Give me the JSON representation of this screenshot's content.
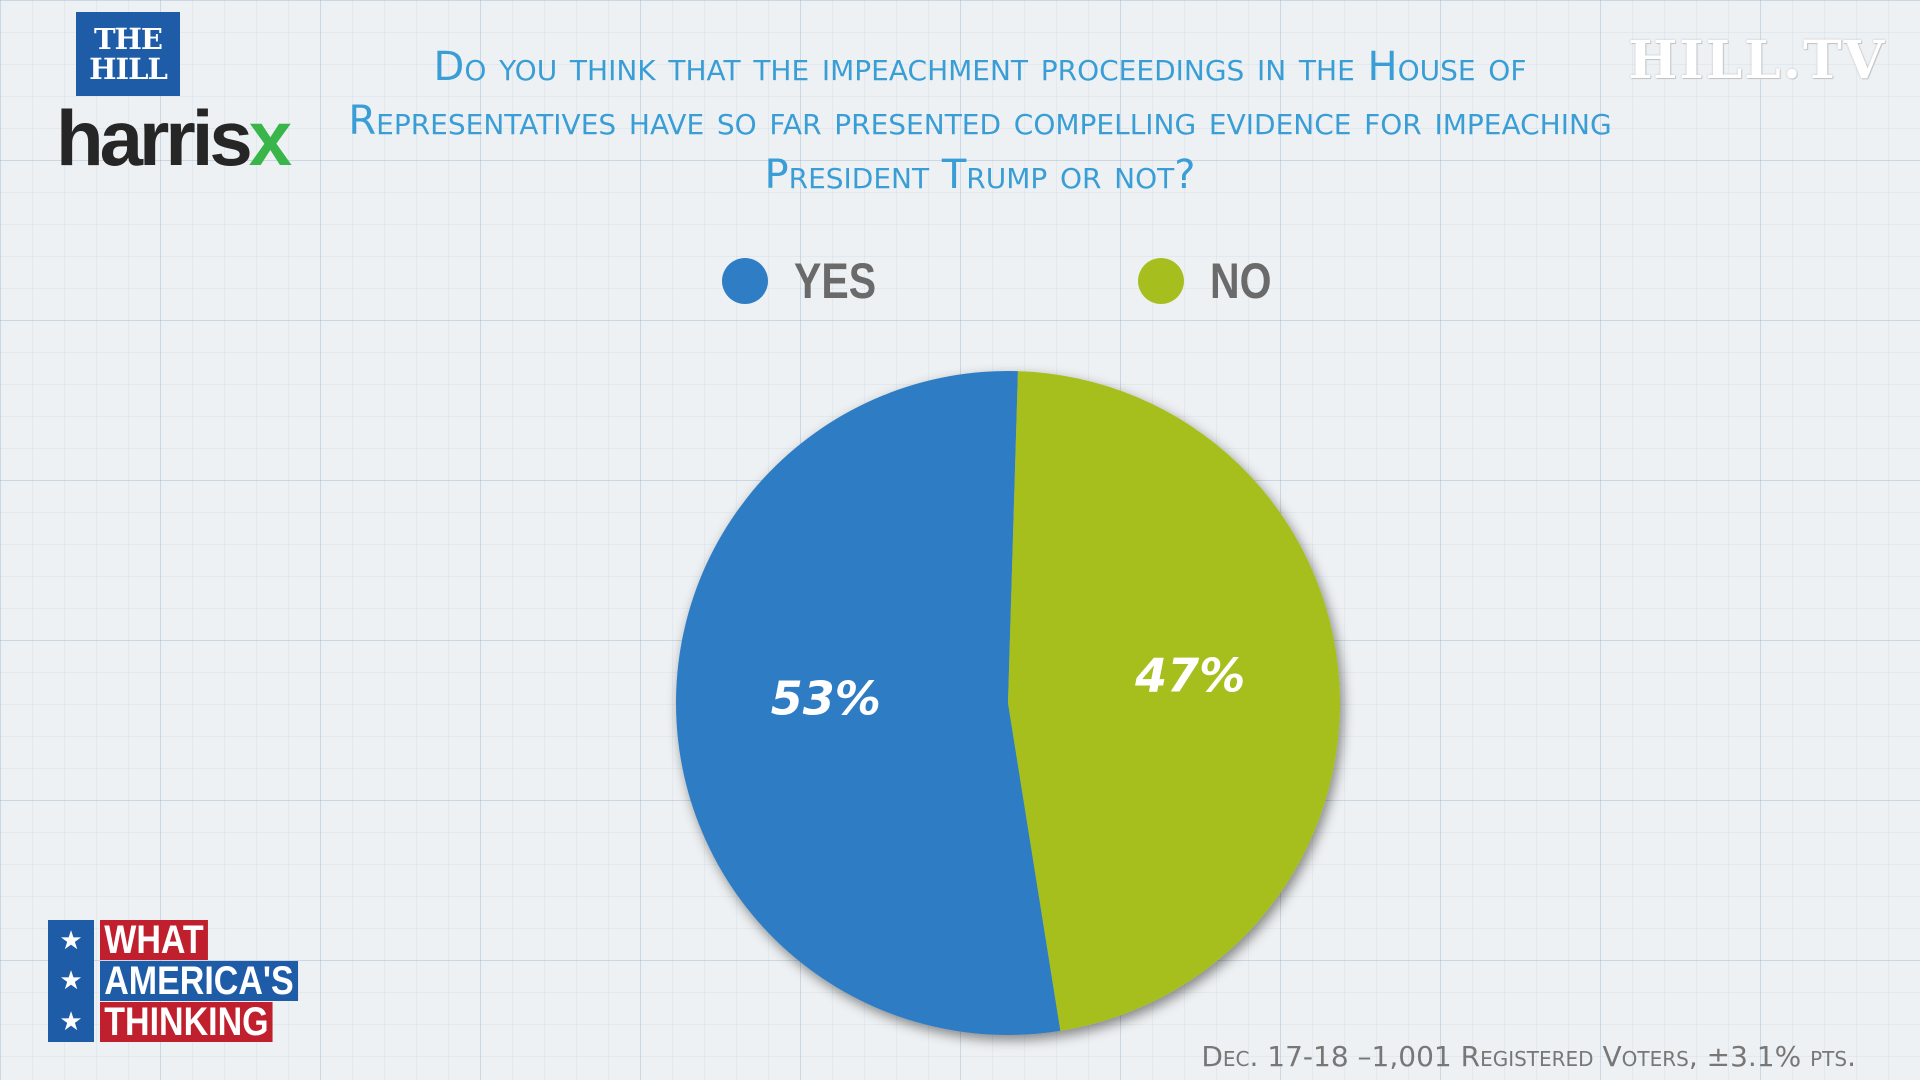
{
  "logos": {
    "thehill_line1": "THE",
    "thehill_line2": "HILL",
    "harrisx_main": "harris",
    "harrisx_x": "x",
    "hilltv": "HILL.TV"
  },
  "colors": {
    "yes": "#2f7dc4",
    "no": "#a6bf1f",
    "title": "#3a9ed6"
  },
  "chart_data": {
    "type": "pie",
    "title": "Do you think that the impeachment proceedings in the House of Representatives have so far presented compelling evidence for impeaching President Trump or not?",
    "categories": [
      "YES",
      "NO"
    ],
    "values": [
      53,
      47
    ],
    "data_labels": [
      "53%",
      "47%"
    ],
    "legend_position": "top"
  },
  "branding": {
    "line1": "WHAT",
    "line2": "AMERICA'S",
    "line3": "THINKING",
    "star": "★"
  },
  "footer": "Dec. 17-18 –1,001 Registered Voters, ±3.1% pts."
}
